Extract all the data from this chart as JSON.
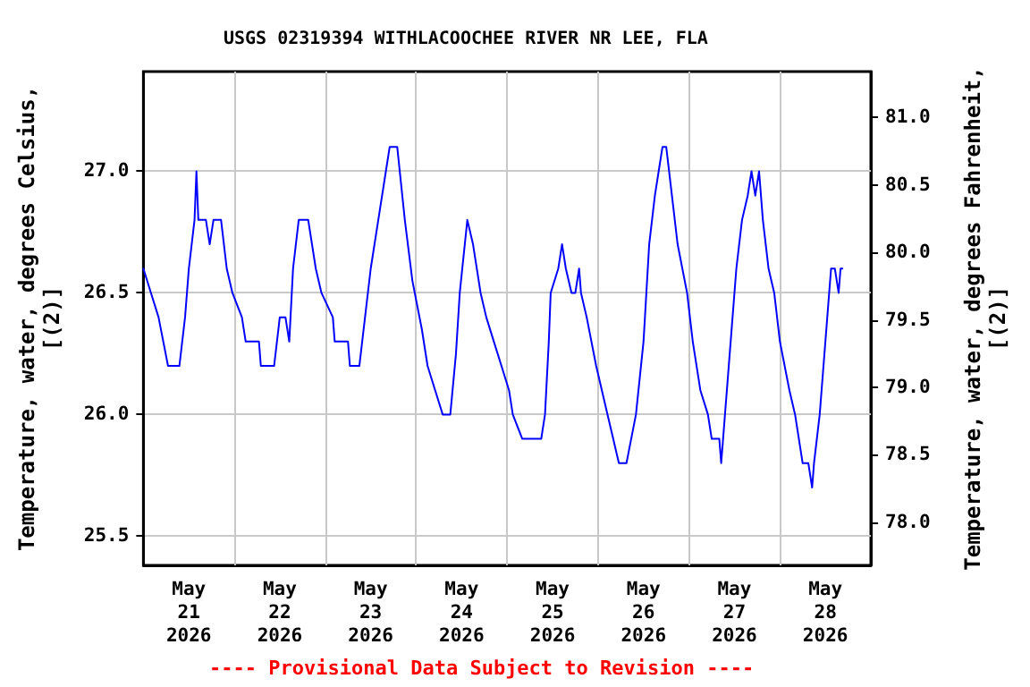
{
  "chart_data": {
    "type": "line",
    "title": "USGS 02319394 WITHLACOOCHEE RIVER NR LEE, FLA",
    "ylabel": "Temperature, water, degrees Celsius,\n[(2)]",
    "y2label": "Temperature, water, degrees Fahrenheit,\n[(2)]",
    "annotations": [
      "---- Provisional Data Subject to Revision ----"
    ],
    "x": [
      "2026-05-21T00:00",
      "2026-05-21T02:00",
      "2026-05-21T04:00",
      "2026-05-21T06:30",
      "2026-05-21T09:30",
      "2026-05-21T11:00",
      "2026-05-21T12:00",
      "2026-05-21T13:30",
      "2026-05-21T14:00",
      "2026-05-21T14:30",
      "2026-05-21T16:30",
      "2026-05-21T17:30",
      "2026-05-21T18:30",
      "2026-05-21T20:30",
      "2026-05-21T22:00",
      "2026-05-21T23:30",
      "2026-05-22T02:00",
      "2026-05-22T03:00",
      "2026-05-22T06:30",
      "2026-05-22T07:00",
      "2026-05-22T10:30",
      "2026-05-22T12:00",
      "2026-05-22T13:30",
      "2026-05-22T14:30",
      "2026-05-22T15:30",
      "2026-05-22T17:00",
      "2026-05-22T19:30",
      "2026-05-22T21:30",
      "2026-05-22T23:00",
      "2026-05-23T02:00",
      "2026-05-23T02:30",
      "2026-05-23T06:00",
      "2026-05-23T06:30",
      "2026-05-23T09:00",
      "2026-05-23T10:30",
      "2026-05-23T12:00",
      "2026-05-23T14:00",
      "2026-05-23T16:00",
      "2026-05-23T17:00",
      "2026-05-23T19:00",
      "2026-05-23T21:00",
      "2026-05-23T23:00",
      "2026-05-24T01:30",
      "2026-05-24T03:00",
      "2026-05-24T05:00",
      "2026-05-24T07:00",
      "2026-05-24T09:00",
      "2026-05-24T10:30",
      "2026-05-24T11:30",
      "2026-05-24T13:30",
      "2026-05-24T15:00",
      "2026-05-24T17:00",
      "2026-05-24T18:30",
      "2026-05-24T20:30",
      "2026-05-24T22:30",
      "2026-05-25T00:30",
      "2026-05-25T01:30",
      "2026-05-25T04:00",
      "2026-05-25T09:00",
      "2026-05-25T10:00",
      "2026-05-25T11:00",
      "2026-05-25T11:30",
      "2026-05-25T13:30",
      "2026-05-25T14:30",
      "2026-05-25T15:30",
      "2026-05-25T17:00",
      "2026-05-25T18:00",
      "2026-05-25T19:00",
      "2026-05-25T19:30",
      "2026-05-25T21:00",
      "2026-05-25T23:30",
      "2026-05-26T02:30",
      "2026-05-26T04:00",
      "2026-05-26T05:30",
      "2026-05-26T07:30",
      "2026-05-26T10:00",
      "2026-05-26T12:00",
      "2026-05-26T13:30",
      "2026-05-26T15:00",
      "2026-05-26T16:00",
      "2026-05-26T17:00",
      "2026-05-26T18:00",
      "2026-05-26T19:30",
      "2026-05-26T21:00",
      "2026-05-26T23:30",
      "2026-05-27T01:00",
      "2026-05-27T03:00",
      "2026-05-27T05:00",
      "2026-05-27T06:00",
      "2026-05-27T08:00",
      "2026-05-27T08:30",
      "2026-05-27T09:30",
      "2026-05-27T11:00",
      "2026-05-27T12:30",
      "2026-05-27T14:00",
      "2026-05-27T15:30",
      "2026-05-27T16:30",
      "2026-05-27T17:30",
      "2026-05-27T18:30",
      "2026-05-27T19:30",
      "2026-05-27T21:00",
      "2026-05-27T22:30",
      "2026-05-28T00:00",
      "2026-05-28T02:30",
      "2026-05-28T04:00",
      "2026-05-28T06:00",
      "2026-05-28T07:30",
      "2026-05-28T08:30",
      "2026-05-28T09:00",
      "2026-05-28T10:30",
      "2026-05-28T12:30",
      "2026-05-28T13:30",
      "2026-05-28T14:30",
      "2026-05-28T15:30",
      "2026-05-28T16:00",
      "2026-05-28T16:30"
    ],
    "series": [
      {
        "color": "#0000ff",
        "values": [
          26.6,
          26.5,
          26.4,
          26.2,
          26.2,
          26.4,
          26.6,
          26.8,
          27.0,
          26.8,
          26.8,
          26.7,
          26.8,
          26.8,
          26.6,
          26.5,
          26.4,
          26.3,
          26.3,
          26.2,
          26.2,
          26.4,
          26.4,
          26.3,
          26.6,
          26.8,
          26.8,
          26.6,
          26.5,
          26.4,
          26.3,
          26.3,
          26.2,
          26.2,
          26.4,
          26.6,
          26.8,
          27.0,
          27.1,
          27.1,
          26.8,
          26.55,
          26.35,
          26.2,
          26.1,
          26.0,
          26.0,
          26.25,
          26.5,
          26.8,
          26.7,
          26.5,
          26.4,
          26.3,
          26.2,
          26.1,
          26.0,
          25.9,
          25.9,
          26.0,
          26.3,
          26.5,
          26.6,
          26.7,
          26.6,
          26.5,
          26.5,
          26.6,
          26.5,
          26.4,
          26.2,
          26.0,
          25.9,
          25.8,
          25.8,
          26.0,
          26.3,
          26.7,
          26.9,
          27.0,
          27.1,
          27.1,
          26.9,
          26.7,
          26.5,
          26.3,
          26.1,
          26.0,
          25.9,
          25.9,
          25.8,
          26.0,
          26.3,
          26.6,
          26.8,
          26.9,
          27.0,
          26.9,
          27.0,
          26.8,
          26.6,
          26.5,
          26.3,
          26.1,
          26.0,
          25.8,
          25.8,
          25.7,
          25.8,
          26.0,
          26.4,
          26.6,
          26.6,
          26.5,
          26.6,
          26.6
        ]
      }
    ],
    "xlim": [
      "2026-05-21T00:00",
      "2026-05-29T00:00"
    ],
    "xticks": [
      {
        "value": "2026-05-21T12:00",
        "label": "May\n21\n2026"
      },
      {
        "value": "2026-05-22T00:00",
        "label": null
      },
      {
        "value": "2026-05-22T12:00",
        "label": "May\n22\n2026"
      },
      {
        "value": "2026-05-23T00:00",
        "label": null
      },
      {
        "value": "2026-05-23T12:00",
        "label": "May\n23\n2026"
      },
      {
        "value": "2026-05-24T00:00",
        "label": null
      },
      {
        "value": "2026-05-24T12:00",
        "label": "May\n24\n2026"
      },
      {
        "value": "2026-05-25T00:00",
        "label": null
      },
      {
        "value": "2026-05-25T12:00",
        "label": "May\n25\n2026"
      },
      {
        "value": "2026-05-26T00:00",
        "label": null
      },
      {
        "value": "2026-05-26T12:00",
        "label": "May\n26\n2026"
      },
      {
        "value": "2026-05-27T00:00",
        "label": null
      },
      {
        "value": "2026-05-27T12:00",
        "label": "May\n27\n2026"
      },
      {
        "value": "2026-05-28T00:00",
        "label": null
      },
      {
        "value": "2026-05-28T12:00",
        "label": "May\n28\n2026"
      }
    ],
    "ylim": [
      25.38,
      27.41
    ],
    "yticks": [
      {
        "value": 25.5,
        "label": "25.5"
      },
      {
        "value": 26,
        "label": "26.0"
      },
      {
        "value": 26.5,
        "label": "26.5"
      },
      {
        "value": 27,
        "label": "27.0"
      }
    ],
    "y2lim": [
      77.68,
      81.34
    ],
    "y2ticks": [
      {
        "value": 78,
        "label": "78.0"
      },
      {
        "value": 78.5,
        "label": "78.5"
      },
      {
        "value": 79,
        "label": "79.0"
      },
      {
        "value": 79.5,
        "label": "79.5"
      },
      {
        "value": 80,
        "label": "80.0"
      },
      {
        "value": 80.5,
        "label": "80.5"
      },
      {
        "value": 81,
        "label": "81.0"
      }
    ],
    "grid": true,
    "marker": "none",
    "line_style": "solid"
  }
}
